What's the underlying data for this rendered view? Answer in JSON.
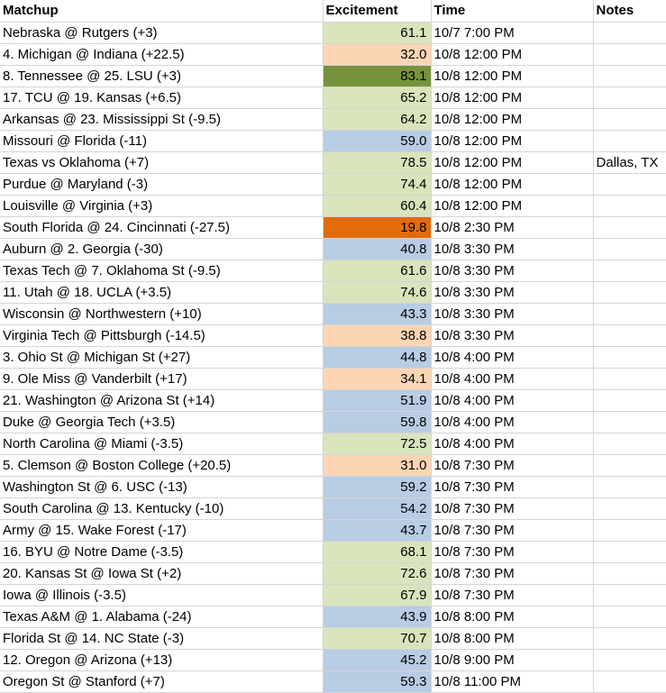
{
  "headers": {
    "matchup": "Matchup",
    "excitement": "Excitement",
    "time": "Time",
    "notes": "Notes"
  },
  "colors": {
    "green_light": "#d8e4bc",
    "green_dark": "#76933c",
    "blue_light": "#b8cce4",
    "peach": "#fcd5b4",
    "orange": "#e26b0a",
    "white": "#ffffff"
  },
  "rows": [
    {
      "matchup": "Nebraska @ Rutgers (+3)",
      "excitement": "61.1",
      "time": "10/7 7:00 PM",
      "notes": "",
      "color": "green_light"
    },
    {
      "matchup": "4. Michigan @ Indiana (+22.5)",
      "excitement": "32.0",
      "time": "10/8 12:00 PM",
      "notes": "",
      "color": "peach"
    },
    {
      "matchup": "8. Tennessee @ 25. LSU (+3)",
      "excitement": "83.1",
      "time": "10/8 12:00 PM",
      "notes": "",
      "color": "green_dark"
    },
    {
      "matchup": "17. TCU @ 19. Kansas (+6.5)",
      "excitement": "65.2",
      "time": "10/8 12:00 PM",
      "notes": "",
      "color": "green_light"
    },
    {
      "matchup": "Arkansas @ 23. Mississippi St (-9.5)",
      "excitement": "64.2",
      "time": "10/8 12:00 PM",
      "notes": "",
      "color": "green_light"
    },
    {
      "matchup": "Missouri @ Florida (-11)",
      "excitement": "59.0",
      "time": "10/8 12:00 PM",
      "notes": "",
      "color": "blue_light"
    },
    {
      "matchup": "Texas vs Oklahoma (+7)",
      "excitement": "78.5",
      "time": "10/8 12:00 PM",
      "notes": "Dallas, TX",
      "color": "green_light"
    },
    {
      "matchup": "Purdue @ Maryland (-3)",
      "excitement": "74.4",
      "time": "10/8 12:00 PM",
      "notes": "",
      "color": "green_light"
    },
    {
      "matchup": "Louisville @ Virginia (+3)",
      "excitement": "60.4",
      "time": "10/8 12:00 PM",
      "notes": "",
      "color": "green_light"
    },
    {
      "matchup": "South Florida @ 24. Cincinnati (-27.5)",
      "excitement": "19.8",
      "time": "10/8 2:30 PM",
      "notes": "",
      "color": "orange"
    },
    {
      "matchup": "Auburn @ 2. Georgia (-30)",
      "excitement": "40.8",
      "time": "10/8 3:30 PM",
      "notes": "",
      "color": "blue_light"
    },
    {
      "matchup": "Texas Tech @ 7. Oklahoma St (-9.5)",
      "excitement": "61.6",
      "time": "10/8 3:30 PM",
      "notes": "",
      "color": "green_light"
    },
    {
      "matchup": "11. Utah @ 18. UCLA (+3.5)",
      "excitement": "74.6",
      "time": "10/8 3:30 PM",
      "notes": "",
      "color": "green_light"
    },
    {
      "matchup": "Wisconsin @ Northwestern (+10)",
      "excitement": "43.3",
      "time": "10/8 3:30 PM",
      "notes": "",
      "color": "blue_light"
    },
    {
      "matchup": "Virginia Tech @ Pittsburgh (-14.5)",
      "excitement": "38.8",
      "time": "10/8 3:30 PM",
      "notes": "",
      "color": "peach"
    },
    {
      "matchup": "3. Ohio St @ Michigan St (+27)",
      "excitement": "44.8",
      "time": "10/8 4:00 PM",
      "notes": "",
      "color": "blue_light"
    },
    {
      "matchup": "9. Ole Miss @ Vanderbilt (+17)",
      "excitement": "34.1",
      "time": "10/8 4:00 PM",
      "notes": "",
      "color": "peach"
    },
    {
      "matchup": "21. Washington @ Arizona St (+14)",
      "excitement": "51.9",
      "time": "10/8 4:00 PM",
      "notes": "",
      "color": "blue_light"
    },
    {
      "matchup": "Duke @ Georgia Tech (+3.5)",
      "excitement": "59.8",
      "time": "10/8 4:00 PM",
      "notes": "",
      "color": "blue_light"
    },
    {
      "matchup": "North Carolina @ Miami (-3.5)",
      "excitement": "72.5",
      "time": "10/8 4:00 PM",
      "notes": "",
      "color": "green_light"
    },
    {
      "matchup": "5. Clemson @ Boston College (+20.5)",
      "excitement": "31.0",
      "time": "10/8 7:30 PM",
      "notes": "",
      "color": "peach"
    },
    {
      "matchup": "Washington St @ 6. USC (-13)",
      "excitement": "59.2",
      "time": "10/8 7:30 PM",
      "notes": "",
      "color": "blue_light"
    },
    {
      "matchup": "South Carolina @ 13. Kentucky (-10)",
      "excitement": "54.2",
      "time": "10/8 7:30 PM",
      "notes": "",
      "color": "blue_light"
    },
    {
      "matchup": "Army @ 15. Wake Forest (-17)",
      "excitement": "43.7",
      "time": "10/8 7:30 PM",
      "notes": "",
      "color": "blue_light"
    },
    {
      "matchup": "16. BYU @ Notre Dame (-3.5)",
      "excitement": "68.1",
      "time": "10/8 7:30 PM",
      "notes": "",
      "color": "green_light"
    },
    {
      "matchup": "20. Kansas St @ Iowa St (+2)",
      "excitement": "72.6",
      "time": "10/8 7:30 PM",
      "notes": "",
      "color": "green_light"
    },
    {
      "matchup": "Iowa @ Illinois (-3.5)",
      "excitement": "67.9",
      "time": "10/8 7:30 PM",
      "notes": "",
      "color": "green_light"
    },
    {
      "matchup": "Texas A&M @ 1. Alabama (-24)",
      "excitement": "43.9",
      "time": "10/8 8:00 PM",
      "notes": "",
      "color": "blue_light"
    },
    {
      "matchup": "Florida St @ 14. NC State (-3)",
      "excitement": "70.7",
      "time": "10/8 8:00 PM",
      "notes": "",
      "color": "green_light"
    },
    {
      "matchup": "12. Oregon @ Arizona (+13)",
      "excitement": "45.2",
      "time": "10/8 9:00 PM",
      "notes": "",
      "color": "blue_light"
    },
    {
      "matchup": "Oregon St @ Stanford (+7)",
      "excitement": "59.3",
      "time": "10/8 11:00 PM",
      "notes": "",
      "color": "blue_light"
    }
  ]
}
